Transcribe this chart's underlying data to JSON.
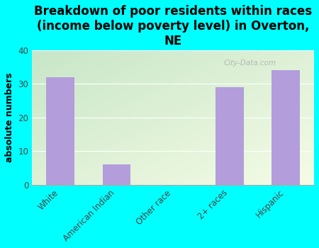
{
  "title": "Breakdown of poor residents within races\n(income below poverty level) in Overton,\nNE",
  "categories": [
    "White",
    "American Indian",
    "Other race",
    "2+ races",
    "Hispanic"
  ],
  "values": [
    32,
    6,
    0,
    29,
    34
  ],
  "bar_color": "#b39ddb",
  "ylabel": "absolute numbers",
  "ylim": [
    0,
    40
  ],
  "yticks": [
    0,
    10,
    20,
    30,
    40
  ],
  "background_outer": "#00ffff",
  "bg_top_left": "#c8e6c9",
  "bg_bottom_right": "#f0f9e0",
  "watermark": "City-Data.com",
  "title_fontsize": 12,
  "ylabel_fontsize": 9,
  "tick_fontsize": 8.5
}
